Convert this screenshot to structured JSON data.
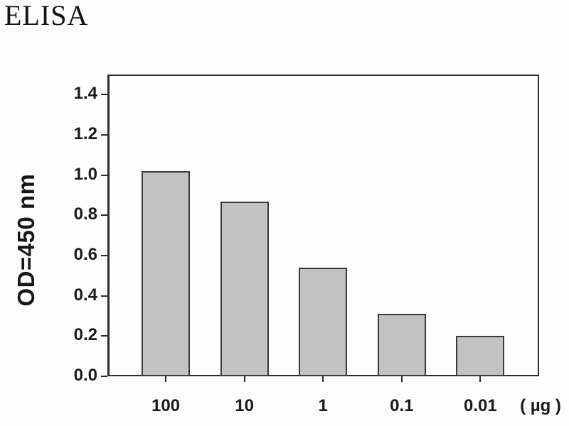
{
  "title": "ELISA",
  "chart_data": {
    "type": "bar",
    "title": "ELISA",
    "categories": [
      "100",
      "10",
      "1",
      "0.1",
      "0.01"
    ],
    "values": [
      1.02,
      0.87,
      0.54,
      0.31,
      0.2
    ],
    "xlabel": "",
    "x_unit_label": "( µg )",
    "ylabel": "OD=450 nm",
    "ylim": [
      0,
      1.5
    ],
    "yticks": [
      0.0,
      0.2,
      0.4,
      0.6,
      0.8,
      1.0,
      1.2,
      1.4
    ],
    "ytick_decimals": 1,
    "grid": "off",
    "legend": "none",
    "bar_fill_color": "#c2c2c2",
    "bar_border_color": "#3a3a3a",
    "axis_color": "#2d2d2d",
    "text_color": "#1a1a1a"
  }
}
